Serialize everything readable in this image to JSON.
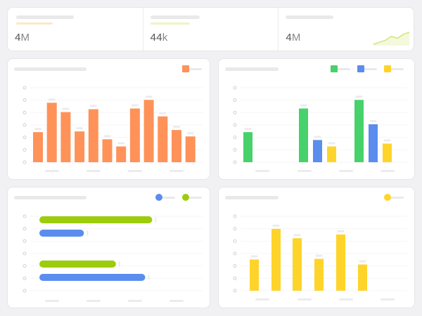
{
  "stats": [
    {
      "value": "4",
      "unit": "M",
      "accent": "#fde7c4"
    },
    {
      "value": "44",
      "unit": "k",
      "accent": "#eef5c2"
    },
    {
      "value": "4",
      "unit": "M",
      "accent": "#eef5c2",
      "sparkline": [
        2,
        3,
        4,
        6,
        5,
        7,
        8
      ]
    }
  ],
  "colors": {
    "orange": "#ff9258",
    "green": "#47d16a",
    "blue": "#5b8def",
    "yellow": "#ffd42a",
    "lime": "#9ccc0c"
  },
  "chart_data": [
    {
      "type": "bar",
      "panel": "top-left",
      "legend": "top-right",
      "ylim": [
        0,
        100
      ],
      "series": [
        {
          "color": "#ff9258",
          "values": [
            42,
            83,
            70,
            43,
            74,
            32,
            22,
            75,
            87,
            64,
            45,
            36
          ]
        }
      ]
    },
    {
      "type": "bar",
      "panel": "top-right",
      "legend": "top-right",
      "ylim": [
        0,
        100
      ],
      "groups": 4,
      "series": [
        {
          "color": "#47d16a",
          "values": [
            42,
            null,
            75,
            87
          ]
        },
        {
          "color": "#5b8def",
          "values": [
            null,
            null,
            31,
            53
          ]
        },
        {
          "color": "#ffd42a",
          "values": [
            null,
            null,
            22,
            26
          ]
        }
      ]
    },
    {
      "type": "bar",
      "orientation": "horizontal",
      "panel": "bottom-left",
      "legend": "top-right",
      "xlim": [
        0,
        100
      ],
      "series": [
        {
          "color": "#5b8def",
          "values": [
            null,
            32,
            null,
            76
          ]
        },
        {
          "color": "#9ccc0c",
          "values": [
            81,
            null,
            55,
            null
          ]
        }
      ]
    },
    {
      "type": "bar",
      "panel": "bottom-right",
      "legend": "top-right",
      "ylim": [
        0,
        100
      ],
      "series": [
        {
          "color": "#ffd42a",
          "values": [
            50,
            99,
            84,
            51,
            90,
            42
          ]
        }
      ]
    }
  ]
}
